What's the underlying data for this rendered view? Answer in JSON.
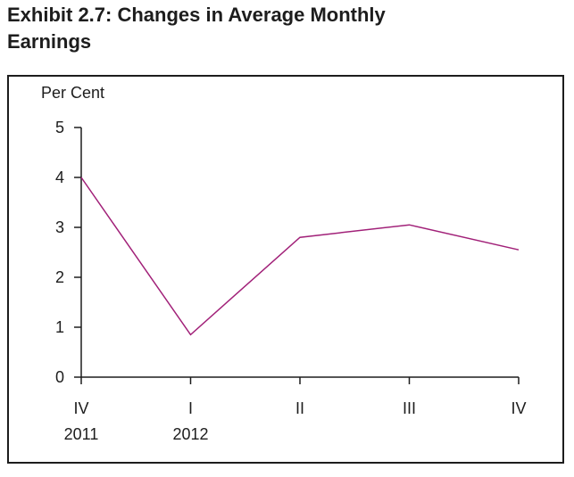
{
  "header": {
    "title": "Exhibit 2.7: Changes in Average Monthly Earnings"
  },
  "chart_data": {
    "type": "line",
    "title": "Exhibit 2.7: Changes in Average Monthly Earnings",
    "ylabel": "Per Cent",
    "xlabel": "",
    "categories": [
      "IV",
      "I",
      "II",
      "III",
      "IV"
    ],
    "year_labels": [
      "2011",
      "2012",
      "",
      "",
      ""
    ],
    "values": [
      4.0,
      0.85,
      2.8,
      3.05,
      2.55
    ],
    "yticks": [
      0,
      1,
      2,
      3,
      4,
      5
    ],
    "ylim": [
      0,
      5
    ],
    "grid": false,
    "legend": "none",
    "line_color": "#A12078",
    "axis_color": "#1d1d1d",
    "title_color": "#1d1d1d"
  }
}
